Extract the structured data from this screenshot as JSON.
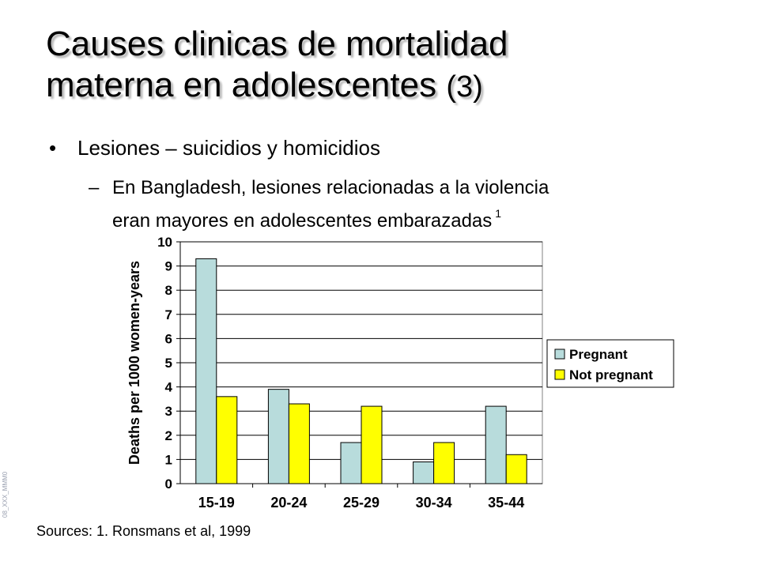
{
  "slide": {
    "title_line1": "Causes clinicas de mortalidad",
    "title_line2": "materna en adolescentes",
    "title_suffix": "(3)",
    "bullet": "Lesiones – suicidios y homicidios",
    "sub_dash": "–",
    "sub_line1": "En Bangladesh, lesiones relacionadas a la violencia",
    "sub_line2": "eran mayores en adolescentes embarazadas",
    "sub_ref": "1",
    "sources": "Sources: 1. Ronsmans et al, 1999",
    "side_code": "08_XXX_MMM0"
  },
  "chart_data": {
    "type": "bar",
    "title": "",
    "xlabel": "",
    "ylabel": "Deaths per 1000 women-years",
    "categories": [
      "15-19",
      "20-24",
      "25-29",
      "30-34",
      "35-44"
    ],
    "series": [
      {
        "name": "Pregnant",
        "values": [
          9.3,
          3.9,
          1.7,
          0.9,
          3.2
        ],
        "color": "#b8dcdc"
      },
      {
        "name": "Not pregnant",
        "values": [
          3.6,
          3.3,
          3.2,
          1.7,
          1.2
        ],
        "color": "#ffff00"
      }
    ],
    "ylim": [
      0,
      10
    ],
    "yticks": [
      "0",
      "1",
      "2",
      "3",
      "4",
      "5",
      "6",
      "7",
      "8",
      "9",
      "10"
    ],
    "grid": true,
    "legend_position": "right"
  }
}
